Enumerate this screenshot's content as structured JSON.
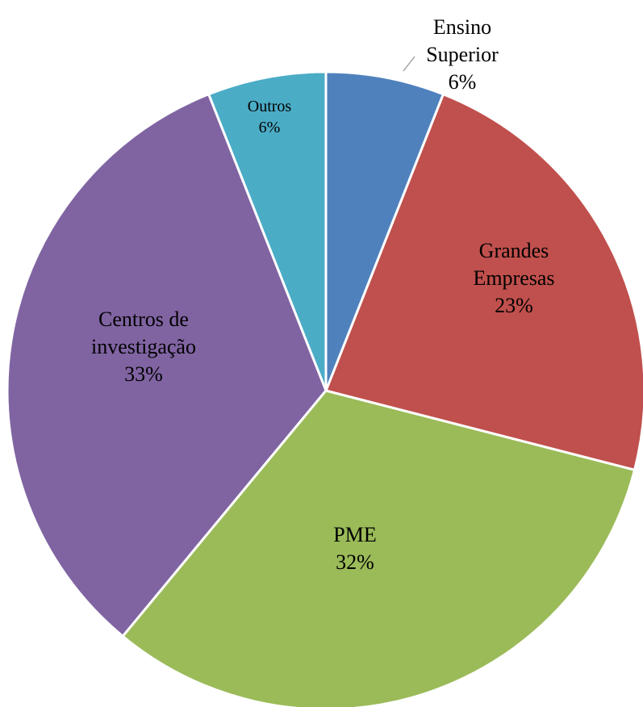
{
  "chart_data": {
    "type": "pie",
    "categories": [
      "Ensino Superior",
      "Grandes Empresas",
      "PME",
      "Centros de investigação",
      "Outros"
    ],
    "values": [
      6,
      23,
      32,
      33,
      6
    ],
    "value_labels": [
      "6%",
      "23%",
      "32%",
      "33%",
      "6%"
    ],
    "colors": [
      "#4f81bd",
      "#c0504d",
      "#9bbb59",
      "#8064a2",
      "#4bacc6"
    ]
  }
}
